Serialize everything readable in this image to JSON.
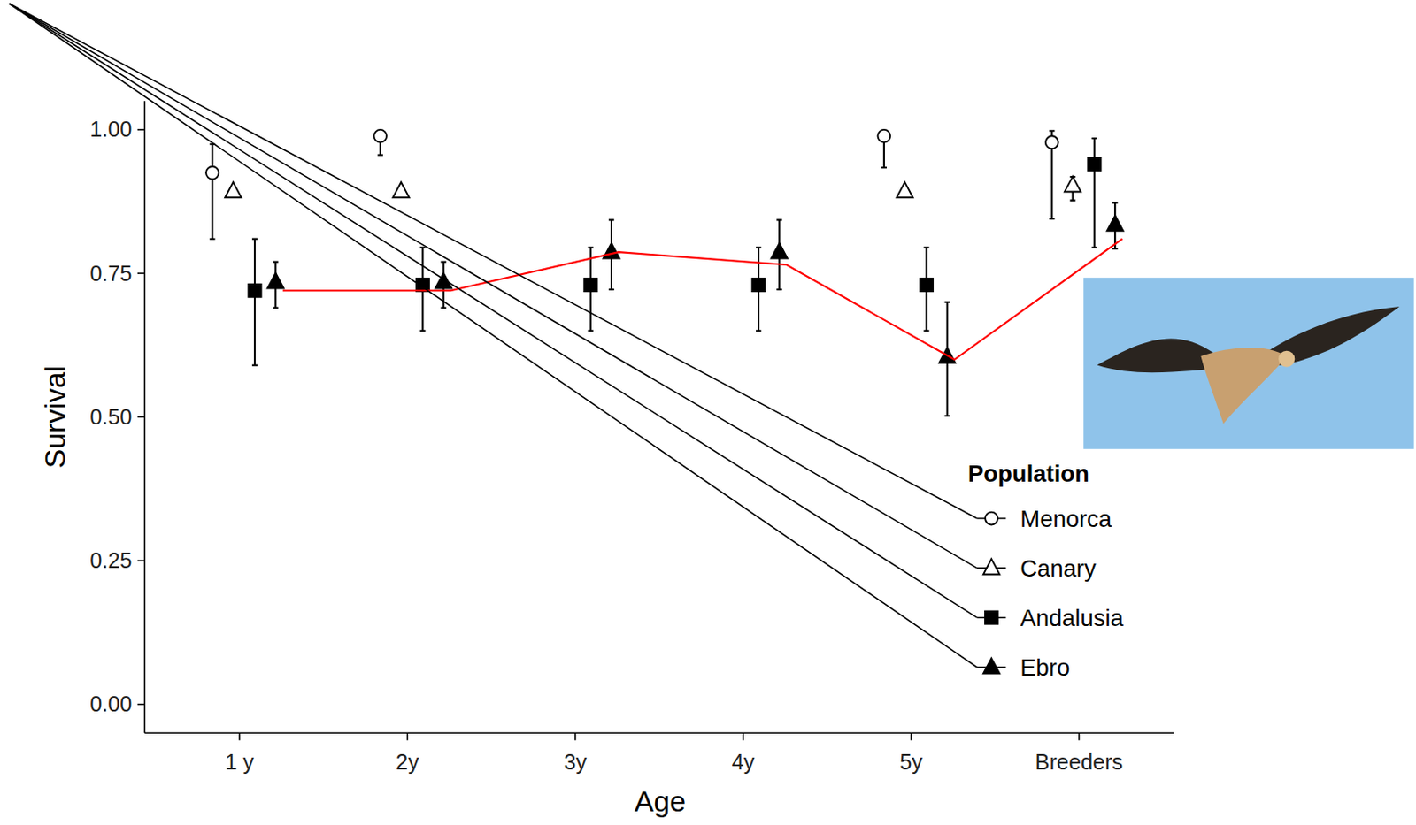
{
  "chart_data": {
    "type": "scatter",
    "x_label": "Age",
    "y_label": "Survival",
    "categories": [
      "1 y",
      "2y",
      "3y",
      "4y",
      "5y",
      "Breeders"
    ],
    "ylim": [
      -0.05,
      1.05
    ],
    "yticks": [
      {
        "value": 0,
        "label": "0.00"
      },
      {
        "value": 0.25,
        "label": "0.25"
      },
      {
        "value": 0.5,
        "label": "0.50"
      },
      {
        "value": 0.75,
        "label": "0.75"
      },
      {
        "value": 1,
        "label": "1.00"
      }
    ],
    "legend": "bottom-right",
    "legend_title": "Population",
    "grid": false,
    "series": [
      {
        "name": "Menorca",
        "color": "#000000",
        "marker": "open-circle",
        "values": [
          0.925,
          0.989,
          null,
          null,
          0.989,
          0.978
        ],
        "lower": [
          0.81,
          0.956,
          null,
          null,
          0.934,
          0.845
        ],
        "upper": [
          0.975,
          0.998,
          null,
          null,
          0.998,
          0.998
        ]
      },
      {
        "name": "Canary",
        "color": "#000000",
        "marker": "open-triangle",
        "values": [
          0.893,
          0.893,
          null,
          null,
          0.893,
          0.903
        ],
        "lower": [
          0.885,
          0.885,
          null,
          null,
          0.885,
          0.877
        ],
        "upper": [
          0.9,
          0.9,
          null,
          null,
          0.9,
          0.918
        ]
      },
      {
        "name": "Andalusia",
        "color": "#000000",
        "marker": "filled-square",
        "values": [
          0.72,
          0.73,
          0.73,
          0.73,
          0.73,
          0.94
        ],
        "lower": [
          0.59,
          0.65,
          0.65,
          0.65,
          0.65,
          0.795
        ],
        "upper": [
          0.81,
          0.795,
          0.795,
          0.795,
          0.795,
          0.985
        ]
      },
      {
        "name": "Ebro",
        "color": "#000000",
        "marker": "filled-triangle",
        "values": [
          0.735,
          0.735,
          0.787,
          0.787,
          0.605,
          0.835
        ],
        "lower": [
          0.69,
          0.69,
          0.722,
          0.722,
          0.502,
          0.793
        ],
        "upper": [
          0.77,
          0.77,
          0.843,
          0.843,
          0.7,
          0.873
        ]
      },
      {
        "type": "line",
        "color": "#ff0000",
        "marker": "none",
        "values": [
          0.72,
          0.72,
          0.787,
          0.765,
          0.6,
          0.81
        ]
      }
    ]
  }
}
